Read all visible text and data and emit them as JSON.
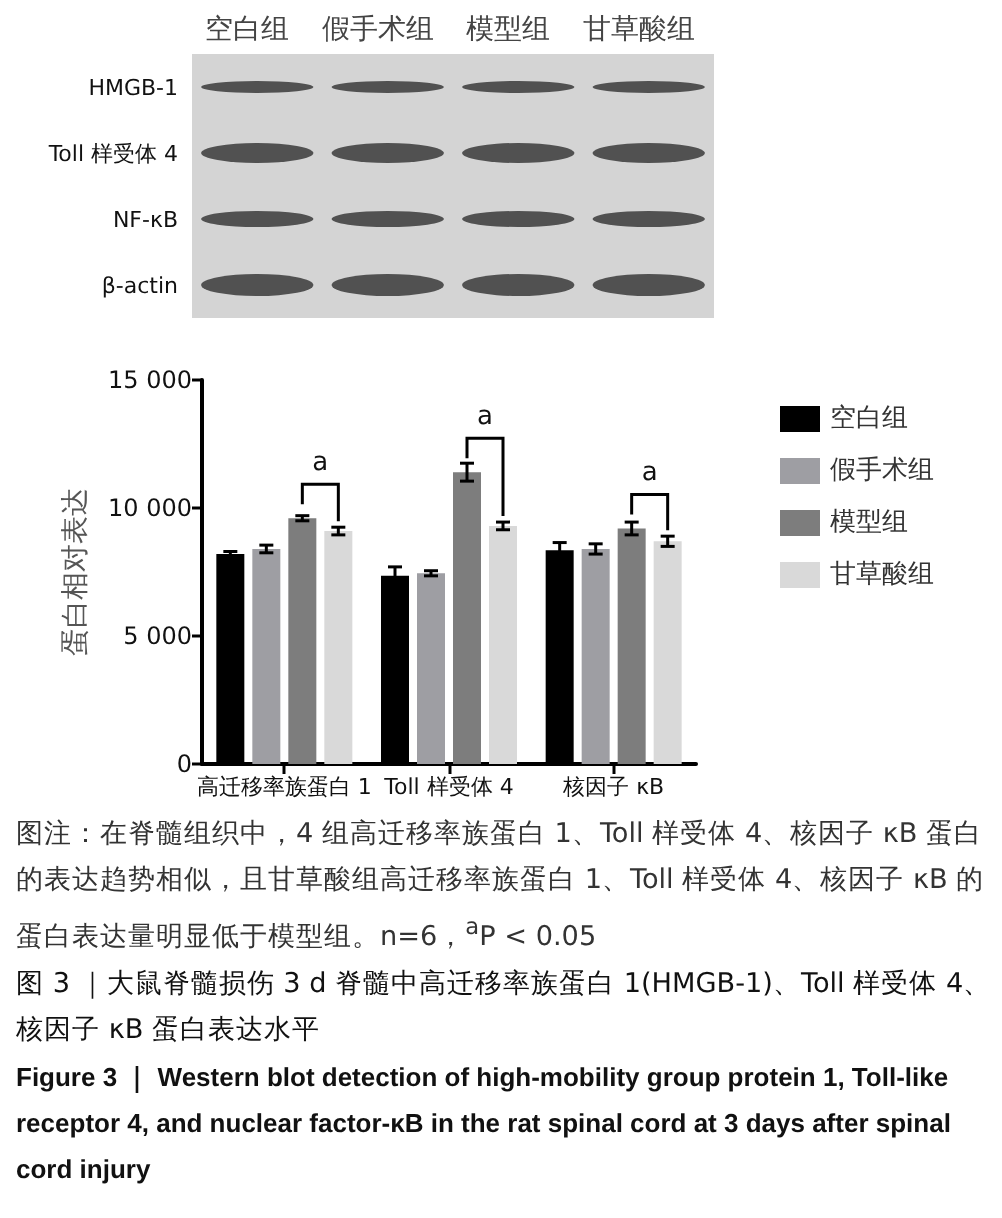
{
  "chart_data": [
    {
      "type": "other",
      "categories": [
        "空白组",
        "假手术组",
        "模型组",
        "甘草酸组"
      ],
      "y_categories": [
        "HMGB-1",
        "Toll 样受体 4",
        "NF-κB",
        "β-actin"
      ]
    },
    {
      "type": "bar",
      "title": "图 3 ｜大鼠脊髓损伤 3 d 脊髓中高迁移率族蛋白 1(HMGB-1)、Toll 样受体 4、核因子 κB 蛋白表达水平",
      "subtitle": "Figure 3 ｜ Western blot detection of high-mobility group protein 1, Toll-like receptor 4, and nuclear factor-κB in the rat spinal cord at 3 days after spinal cord injury",
      "ylabel": "蛋白相对表达",
      "categories": [
        "高迁移率族蛋白 1",
        "Toll 样受体 4",
        "核因子 κB"
      ],
      "series": [
        {
          "name": "空白组",
          "color": "#000000",
          "values": [
            8200,
            7350,
            8350
          ],
          "errors": [
            100,
            350,
            300
          ]
        },
        {
          "name": "假手术组",
          "color": "#9e9ea3",
          "values": [
            8400,
            7450,
            8400
          ],
          "errors": [
            150,
            100,
            200
          ]
        },
        {
          "name": "模型组",
          "color": "#7d7d7d",
          "values": [
            9600,
            11400,
            9200
          ],
          "errors": [
            100,
            350,
            250
          ]
        },
        {
          "name": "甘草酸组",
          "color": "#d9d9d9",
          "values": [
            9100,
            9300,
            8700
          ],
          "errors": [
            150,
            150,
            200
          ]
        }
      ],
      "ylim": [
        0,
        15000
      ],
      "yticks": [
        0,
        {
          "value": 5000,
          "label": "5 000"
        },
        {
          "value": 10000,
          "label": "10 000"
        },
        {
          "value": 15000,
          "label": "15 000"
        }
      ],
      "grid": false,
      "legend": "top right",
      "annotations": [
        {
          "text": "a",
          "x": "高迁移率族蛋白 1",
          "y": 9600
        },
        {
          "text": "a",
          "x": "Toll 样受体 4",
          "y": 11400
        },
        {
          "text": "a",
          "x": "核因子 κB",
          "y": 9200
        },
        "图注：在脊髓组织中，4 组高迁移率族蛋白 1、Toll 样受体 4、核因子 κB 蛋白的表达趋势相似，且甘草酸组高迁移率族蛋白 1、Toll 样受体 4、核因子 κB 的蛋白表达量明显低于模型组。n=6，$^{a}$P < 0.05"
      ]
    }
  ]
}
